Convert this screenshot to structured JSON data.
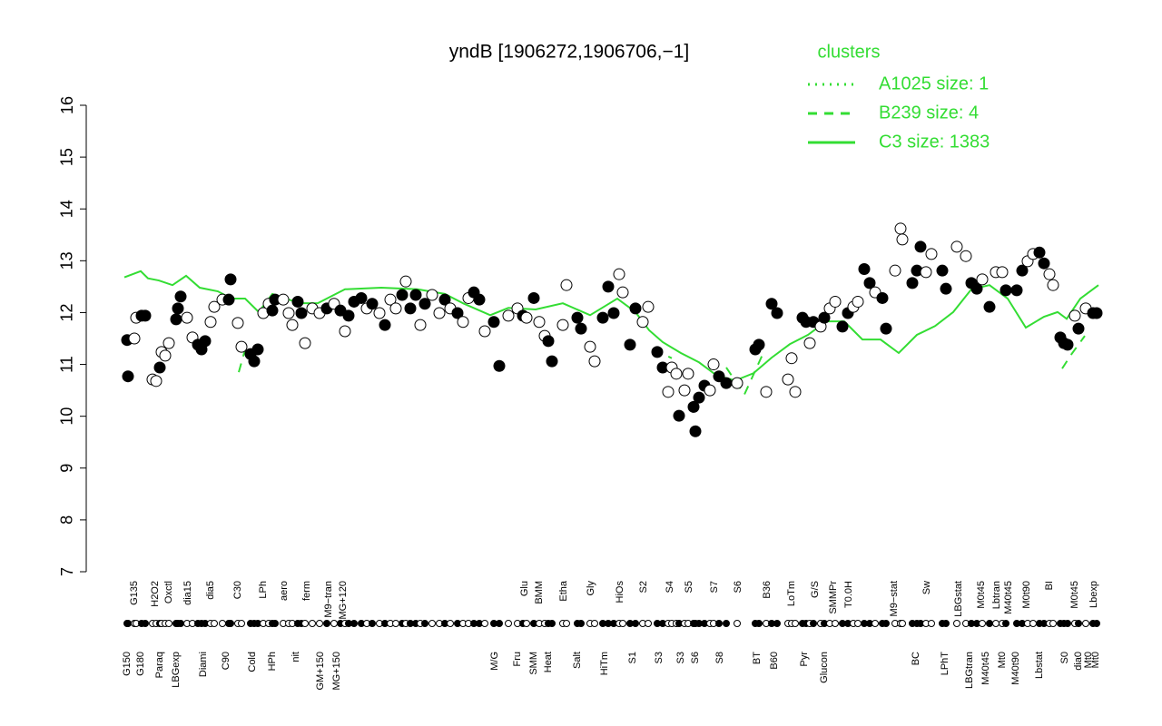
{
  "chart_data": {
    "type": "expression",
    "title": "yndB [1906272,1906706,−1]",
    "ylim": [
      7,
      16
    ],
    "yticks": [
      7,
      8,
      9,
      10,
      11,
      12,
      13,
      14,
      15,
      16
    ],
    "xlim": [
      0,
      279.5
    ],
    "legend_title": "clusters",
    "legend_position": "top-right",
    "series": [
      {
        "name": "A1025 size: 1",
        "color": "#33dd33",
        "style": "dotted",
        "x": [],
        "values": []
      },
      {
        "name": "B239 size: 4",
        "color": "#33dd33",
        "style": "dashed",
        "x": [
          41.5,
          43.25,
          null,
          155.75,
          160.75,
          null,
          175.75,
          180.75,
          185.75,
          null,
          268.25,
          270.75,
          274.5
        ],
        "values": [
          10.85,
          11.29,
          null,
          11.29,
          11.12,
          null,
          10.94,
          10.42,
          11.19,
          null,
          10.92,
          11.19,
          11.55
        ]
      },
      {
        "name": "C3 size: 1383",
        "color": "#33dd33",
        "style": "solid",
        "x": [
          10,
          14.5,
          16.5,
          19.5,
          23.25,
          27,
          30.75,
          35.75,
          39.5,
          43.25,
          47,
          50.75,
          58.25,
          63.25,
          70.75,
          80.75,
          90.75,
          98.25,
          103.25,
          110.75,
          115.75,
          123.25,
          130.75,
          138.25,
          145.75,
          150.75,
          154.5,
          158.25,
          163.25,
          168.25,
          173.25,
          178.25,
          183.25,
          188.25,
          193.25,
          198.25,
          203.25,
          208.25,
          213.25,
          218.25,
          223.25,
          228.25,
          233.25,
          238.25,
          243.25,
          248.25,
          253.25,
          258.25,
          263.25,
          267,
          269.5,
          273.25,
          278.25
        ],
        "values": [
          12.68,
          12.8,
          12.66,
          12.62,
          12.53,
          12.71,
          12.48,
          12.41,
          12.27,
          12.27,
          12.01,
          12.36,
          12.18,
          12.18,
          12.45,
          12.48,
          12.45,
          12.36,
          12.18,
          11.95,
          12.09,
          12.06,
          12.18,
          11.95,
          12.27,
          12.01,
          11.66,
          11.43,
          11.22,
          11.04,
          10.78,
          10.69,
          10.83,
          11.13,
          11.39,
          11.57,
          11.83,
          11.83,
          11.48,
          11.48,
          11.22,
          11.57,
          11.74,
          12.01,
          12.45,
          12.53,
          12.27,
          11.71,
          11.92,
          12.01,
          11.88,
          12.27,
          12.53
        ]
      }
    ],
    "points": {
      "x": [
        10.75,
        11,
        12.75,
        13.25,
        14.75,
        15.75,
        17.75,
        18.75,
        19.75,
        20.25,
        21.25,
        22.25,
        24.25,
        24.75,
        25.5,
        27.25,
        28.75,
        30.25,
        31.25,
        32.25,
        33.75,
        34.75,
        37,
        38.75,
        39.25,
        41.25,
        42.25,
        44.75,
        45.75,
        46.75,
        48.25,
        49.75,
        50.75,
        51.5,
        53.75,
        55.25,
        56.25,
        57.75,
        58.75,
        59.75,
        61.75,
        63.75,
        65.75,
        67.75,
        69.5,
        70.75,
        71.75,
        73.25,
        75.25,
        76.75,
        78.25,
        80.25,
        81.75,
        83.25,
        84.75,
        86.5,
        87.5,
        88.75,
        90.25,
        91.5,
        92.75,
        94.75,
        96.75,
        98.25,
        99.75,
        101.75,
        103.25,
        104.75,
        106.25,
        107.75,
        109.25,
        111.75,
        113.25,
        115.75,
        118.25,
        119.75,
        120.75,
        122.75,
        124.25,
        125.75,
        126.75,
        127.75,
        130.75,
        131.75,
        134.75,
        135.75,
        138.25,
        139.5,
        141.75,
        143.25,
        144.75,
        146.25,
        147.25,
        149.25,
        150.75,
        152.75,
        154.25,
        156.75,
        158.25,
        159.75,
        160.75,
        162,
        162.75,
        164.25,
        165.25,
        166.75,
        167.25,
        168.25,
        169.75,
        171.25,
        172.25,
        173.75,
        175.75,
        178.75,
        183.75,
        184.75,
        186.75,
        188.25,
        189.75,
        192.75,
        193.75,
        194.75,
        196.75,
        197.75,
        198.75,
        199.75,
        201.75,
        202.75,
        204.25,
        205.75,
        207.75,
        209.25,
        210.75,
        212,
        213.75,
        215.25,
        216.75,
        218.75,
        219.75,
        222.25,
        223.75,
        224.25,
        227,
        228.25,
        229.25,
        230.75,
        232.25,
        235.25,
        236.25,
        239.25,
        241.75,
        243.25,
        244.75,
        246.25,
        248.25,
        250,
        251.75,
        252.75,
        255.75,
        257.25,
        258.75,
        260.25,
        262,
        263.25,
        264.75,
        265.75,
        267.75,
        268.75,
        269.75,
        271.75,
        272.75,
        274.75,
        276.75,
        277.75
      ],
      "values": [
        11.47,
        10.77,
        11.5,
        11.9,
        11.94,
        11.94,
        10.71,
        10.68,
        10.94,
        11.24,
        11.17,
        11.41,
        11.87,
        12.08,
        12.31,
        11.9,
        11.52,
        11.38,
        11.29,
        11.45,
        11.82,
        12.11,
        12.25,
        12.25,
        12.64,
        11.8,
        11.34,
        11.2,
        11.06,
        11.29,
        11.99,
        12.17,
        12.04,
        12.25,
        12.25,
        11.99,
        11.76,
        12.21,
        11.99,
        11.41,
        12.08,
        11.99,
        12.08,
        12.17,
        12.04,
        11.64,
        11.94,
        12.21,
        12.28,
        12.08,
        12.17,
        11.99,
        11.76,
        12.25,
        12.08,
        12.34,
        12.6,
        12.08,
        12.34,
        11.76,
        12.17,
        12.34,
        11.99,
        12.25,
        12.08,
        11.99,
        11.82,
        12.28,
        12.39,
        12.25,
        11.64,
        11.82,
        10.97,
        11.94,
        12.08,
        11.94,
        11.9,
        12.28,
        11.82,
        11.55,
        11.45,
        11.06,
        11.76,
        12.53,
        11.9,
        11.69,
        11.34,
        11.06,
        11.9,
        12.5,
        11.99,
        12.74,
        12.39,
        11.38,
        12.08,
        11.82,
        12.11,
        11.24,
        10.94,
        10.47,
        10.94,
        10.82,
        10.01,
        10.5,
        10.82,
        10.18,
        9.71,
        10.36,
        10.59,
        10.5,
        11.0,
        10.77,
        10.64,
        10.64,
        11.29,
        11.38,
        10.47,
        12.17,
        11.99,
        10.71,
        11.12,
        10.47,
        11.9,
        11.82,
        11.41,
        11.82,
        11.73,
        11.9,
        12.08,
        12.21,
        11.73,
        11.99,
        12.11,
        12.21,
        12.84,
        12.57,
        12.39,
        12.28,
        11.69,
        12.81,
        13.62,
        13.41,
        12.57,
        12.81,
        13.27,
        12.78,
        13.13,
        12.81,
        12.46,
        13.27,
        13.09,
        12.57,
        12.46,
        12.64,
        12.11,
        12.78,
        12.78,
        12.43,
        12.43,
        12.81,
        12.99,
        13.13,
        13.16,
        12.95,
        12.74,
        12.53,
        11.52,
        11.41,
        11.38,
        11.94,
        11.69,
        12.08,
        11.99,
        11.99
      ],
      "filled": [
        true,
        true,
        false,
        false,
        true,
        true,
        false,
        false,
        true,
        false,
        false,
        false,
        true,
        true,
        true,
        false,
        false,
        true,
        true,
        true,
        false,
        false,
        false,
        true,
        true,
        false,
        false,
        true,
        true,
        true,
        false,
        false,
        true,
        true,
        false,
        false,
        false,
        true,
        true,
        false,
        false,
        false,
        true,
        false,
        true,
        false,
        true,
        true,
        true,
        false,
        true,
        false,
        true,
        false,
        false,
        true,
        false,
        true,
        true,
        false,
        true,
        false,
        false,
        true,
        false,
        true,
        false,
        false,
        true,
        true,
        false,
        true,
        true,
        false,
        false,
        true,
        false,
        true,
        false,
        false,
        true,
        true,
        false,
        false,
        true,
        true,
        false,
        false,
        true,
        true,
        true,
        false,
        false,
        true,
        true,
        false,
        false,
        true,
        true,
        false,
        false,
        false,
        true,
        false,
        false,
        true,
        true,
        true,
        true,
        false,
        false,
        true,
        true,
        false,
        true,
        true,
        false,
        true,
        true,
        false,
        false,
        false,
        true,
        true,
        false,
        true,
        false,
        true,
        false,
        false,
        true,
        true,
        false,
        false,
        true,
        true,
        false,
        true,
        true,
        false,
        false,
        false,
        true,
        true,
        true,
        false,
        false,
        true,
        true,
        false,
        false,
        true,
        true,
        false,
        true,
        false,
        false,
        true,
        true,
        true,
        false,
        false,
        true,
        true,
        false,
        false,
        true,
        true,
        true,
        false,
        true,
        false,
        true,
        true
      ]
    },
    "xticks_top": [
      {
        "value": 12.75,
        "label": "G135"
      },
      {
        "value": 18.5,
        "label": "H2O2"
      },
      {
        "value": 22.25,
        "label": "Oxctl"
      },
      {
        "value": 27.5,
        "label": "dia15"
      },
      {
        "value": 33.75,
        "label": "dia5"
      },
      {
        "value": 41.25,
        "label": "C30"
      },
      {
        "value": 48.25,
        "label": "LPh"
      },
      {
        "value": 54,
        "label": "aero"
      },
      {
        "value": 60.25,
        "label": "ferm"
      },
      {
        "value": 66.25,
        "label": "M9−tran"
      },
      {
        "value": 70.25,
        "label": "MG+120"
      },
      {
        "value": 120.25,
        "label": "Glu"
      },
      {
        "value": 124.25,
        "label": "BMM"
      },
      {
        "value": 131,
        "label": "Etha"
      },
      {
        "value": 138.5,
        "label": "Gly"
      },
      {
        "value": 146.5,
        "label": "HiOs"
      },
      {
        "value": 153,
        "label": "S2"
      },
      {
        "value": 160.25,
        "label": "S4"
      },
      {
        "value": 165.5,
        "label": "S5"
      },
      {
        "value": 172.5,
        "label": "S7"
      },
      {
        "value": 179,
        "label": "S6"
      },
      {
        "value": 187,
        "label": "B36"
      },
      {
        "value": 193.75,
        "label": "LoTm"
      },
      {
        "value": 200.25,
        "label": "G/S"
      },
      {
        "value": 205.25,
        "label": "SMMPr"
      },
      {
        "value": 209.5,
        "label": "T0.0H"
      },
      {
        "value": 222,
        "label": "M9−stat"
      },
      {
        "value": 231,
        "label": "Sw"
      },
      {
        "value": 239.75,
        "label": "LBGstat"
      },
      {
        "value": 246,
        "label": "M0t45"
      },
      {
        "value": 250.25,
        "label": "Lbtran"
      },
      {
        "value": 253.5,
        "label": "M40t45"
      },
      {
        "value": 258.5,
        "label": "M0t90"
      },
      {
        "value": 264.75,
        "label": "BI"
      },
      {
        "value": 271.75,
        "label": "M0t45"
      },
      {
        "value": 277,
        "label": "Lbexp"
      }
    ],
    "xticks_bottom": [
      {
        "value": 10.75,
        "label": "G150"
      },
      {
        "value": 14.5,
        "label": "G180"
      },
      {
        "value": 19.75,
        "label": "Paraq"
      },
      {
        "value": 24.25,
        "label": "LBGexp"
      },
      {
        "value": 31.75,
        "label": "Diami"
      },
      {
        "value": 38,
        "label": "C90"
      },
      {
        "value": 45.25,
        "label": "Cold"
      },
      {
        "value": 50.75,
        "label": "HPh"
      },
      {
        "value": 57.25,
        "label": "nit"
      },
      {
        "value": 64,
        "label": "GM+150"
      },
      {
        "value": 68.5,
        "label": "MG+150"
      },
      {
        "value": 112,
        "label": "M/G"
      },
      {
        "value": 118.25,
        "label": "Fru"
      },
      {
        "value": 122.75,
        "label": "SMM"
      },
      {
        "value": 126.75,
        "label": "Heat"
      },
      {
        "value": 134.75,
        "label": "Salt"
      },
      {
        "value": 142.25,
        "label": "HiTm"
      },
      {
        "value": 150,
        "label": "S1"
      },
      {
        "value": 157.25,
        "label": "S3"
      },
      {
        "value": 163.25,
        "label": "S3"
      },
      {
        "value": 167.25,
        "label": "S6"
      },
      {
        "value": 174,
        "label": "S8"
      },
      {
        "value": 184.25,
        "label": "BT"
      },
      {
        "value": 189,
        "label": "B60"
      },
      {
        "value": 197.25,
        "label": "Pyr"
      },
      {
        "value": 202.75,
        "label": "Glucon"
      },
      {
        "value": 228,
        "label": "BC"
      },
      {
        "value": 236,
        "label": "LPhT"
      },
      {
        "value": 242.75,
        "label": "LBGtran"
      },
      {
        "value": 247.25,
        "label": "M40t45"
      },
      {
        "value": 251.75,
        "label": "Mt0"
      },
      {
        "value": 255.5,
        "label": "M40t90"
      },
      {
        "value": 262,
        "label": "Lbstat"
      },
      {
        "value": 269,
        "label": "S0"
      },
      {
        "value": 272.75,
        "label": "dia0"
      },
      {
        "value": 275.5,
        "label": "Mt0"
      },
      {
        "value": 277.5,
        "label": "Mt0"
      }
    ]
  }
}
